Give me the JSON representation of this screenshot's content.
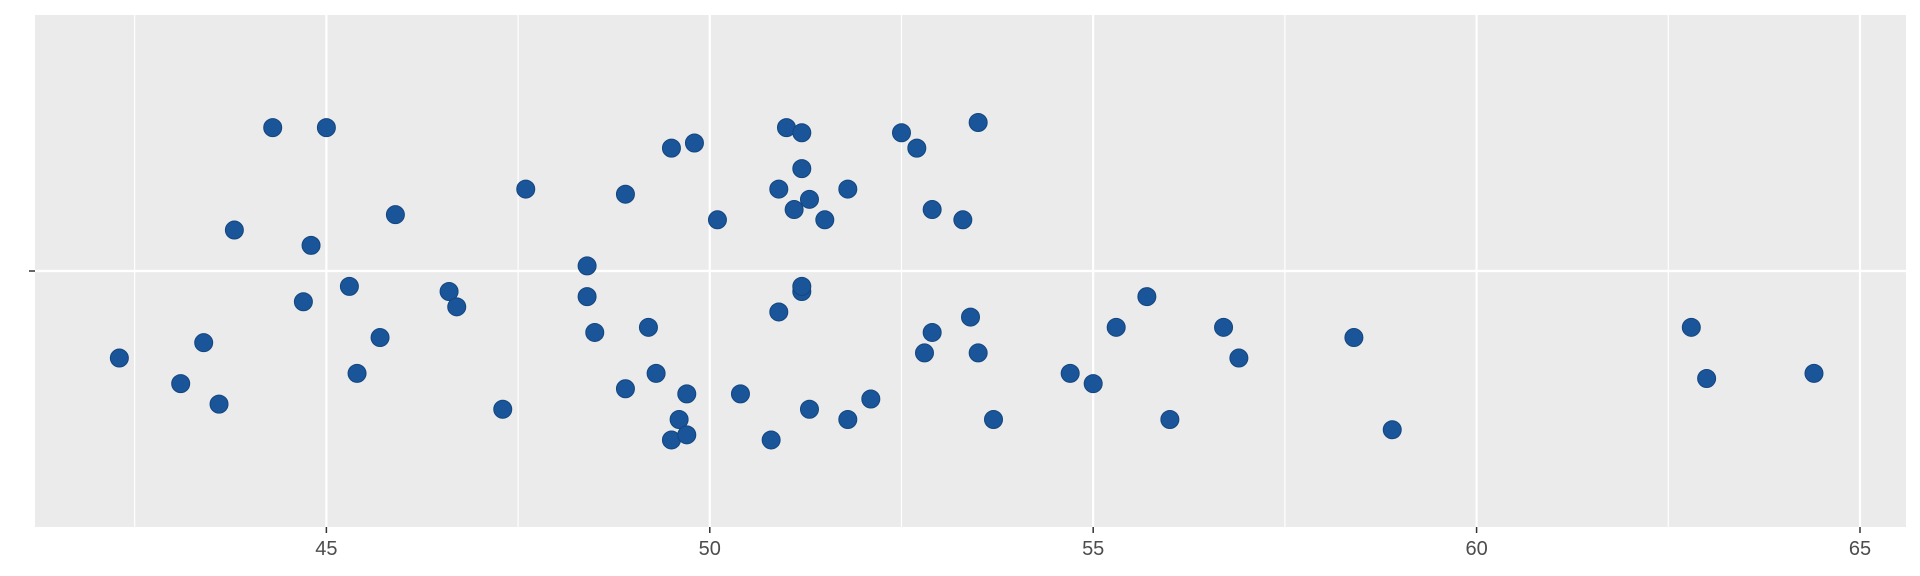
{
  "chart_data": {
    "type": "scatter",
    "subtype": "jitter-strip",
    "title": "",
    "xlabel": "",
    "ylabel": "",
    "xlim": [
      41.2,
      65.6
    ],
    "ylim": [
      -0.5,
      0.5
    ],
    "x_ticks": [
      45,
      50,
      55,
      60,
      65
    ],
    "x_minor_ticks": [
      42.5,
      47.5,
      52.5,
      57.5,
      62.5
    ],
    "y_ticks": [
      0
    ],
    "y_tick_labels": [
      ""
    ],
    "grid": true,
    "background": "#ebebeb",
    "grid_color": "#ffffff",
    "point_color": "#1a5599",
    "points": [
      {
        "x": 44.3,
        "y": 0.28
      },
      {
        "x": 45.0,
        "y": 0.28
      },
      {
        "x": 43.8,
        "y": 0.08
      },
      {
        "x": 44.8,
        "y": 0.05
      },
      {
        "x": 45.9,
        "y": 0.11
      },
      {
        "x": 47.6,
        "y": 0.16
      },
      {
        "x": 48.9,
        "y": 0.15
      },
      {
        "x": 49.5,
        "y": 0.24
      },
      {
        "x": 49.8,
        "y": 0.25
      },
      {
        "x": 50.1,
        "y": 0.1
      },
      {
        "x": 50.9,
        "y": 0.16
      },
      {
        "x": 51.0,
        "y": 0.28
      },
      {
        "x": 51.1,
        "y": 0.12
      },
      {
        "x": 51.2,
        "y": 0.27
      },
      {
        "x": 51.2,
        "y": 0.2
      },
      {
        "x": 51.3,
        "y": 0.14
      },
      {
        "x": 51.5,
        "y": 0.1
      },
      {
        "x": 51.8,
        "y": 0.16
      },
      {
        "x": 52.5,
        "y": 0.27
      },
      {
        "x": 52.7,
        "y": 0.24
      },
      {
        "x": 52.9,
        "y": 0.12
      },
      {
        "x": 53.3,
        "y": 0.1
      },
      {
        "x": 53.5,
        "y": 0.29
      },
      {
        "x": 42.3,
        "y": -0.17
      },
      {
        "x": 43.1,
        "y": -0.22
      },
      {
        "x": 43.4,
        "y": -0.14
      },
      {
        "x": 43.6,
        "y": -0.26
      },
      {
        "x": 44.7,
        "y": -0.06
      },
      {
        "x": 45.3,
        "y": -0.03
      },
      {
        "x": 45.4,
        "y": -0.2
      },
      {
        "x": 45.7,
        "y": -0.13
      },
      {
        "x": 46.6,
        "y": -0.04
      },
      {
        "x": 46.7,
        "y": -0.07
      },
      {
        "x": 47.3,
        "y": -0.27
      },
      {
        "x": 48.4,
        "y": 0.01
      },
      {
        "x": 48.4,
        "y": -0.05
      },
      {
        "x": 48.5,
        "y": -0.12
      },
      {
        "x": 48.9,
        "y": -0.23
      },
      {
        "x": 49.2,
        "y": -0.11
      },
      {
        "x": 49.3,
        "y": -0.2
      },
      {
        "x": 49.5,
        "y": -0.33
      },
      {
        "x": 49.6,
        "y": -0.29
      },
      {
        "x": 49.7,
        "y": -0.32
      },
      {
        "x": 49.7,
        "y": -0.24
      },
      {
        "x": 50.4,
        "y": -0.24
      },
      {
        "x": 50.8,
        "y": -0.33
      },
      {
        "x": 50.9,
        "y": -0.08
      },
      {
        "x": 51.2,
        "y": -0.04
      },
      {
        "x": 51.2,
        "y": -0.03
      },
      {
        "x": 51.3,
        "y": -0.27
      },
      {
        "x": 51.8,
        "y": -0.29
      },
      {
        "x": 52.1,
        "y": -0.25
      },
      {
        "x": 52.8,
        "y": -0.16
      },
      {
        "x": 52.9,
        "y": -0.12
      },
      {
        "x": 53.4,
        "y": -0.09
      },
      {
        "x": 53.5,
        "y": -0.16
      },
      {
        "x": 53.7,
        "y": -0.29
      },
      {
        "x": 54.7,
        "y": -0.2
      },
      {
        "x": 55.0,
        "y": -0.22
      },
      {
        "x": 55.3,
        "y": -0.11
      },
      {
        "x": 55.7,
        "y": -0.05
      },
      {
        "x": 56.0,
        "y": -0.29
      },
      {
        "x": 56.7,
        "y": -0.11
      },
      {
        "x": 56.9,
        "y": -0.17
      },
      {
        "x": 58.4,
        "y": -0.13
      },
      {
        "x": 58.9,
        "y": -0.31
      },
      {
        "x": 62.8,
        "y": -0.11
      },
      {
        "x": 63.0,
        "y": -0.21
      },
      {
        "x": 64.4,
        "y": -0.2
      }
    ]
  }
}
